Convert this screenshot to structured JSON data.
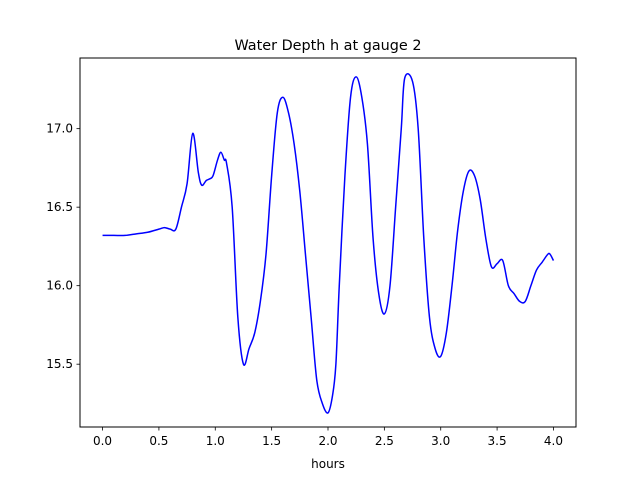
{
  "chart_data": {
    "type": "line",
    "title": "Water Depth h at gauge 2",
    "xlabel": "hours",
    "ylabel": "",
    "xlim": [
      -0.2,
      4.2
    ],
    "ylim": [
      15.1,
      17.45
    ],
    "xticks": [
      0.0,
      0.5,
      1.0,
      1.5,
      2.0,
      2.5,
      3.0,
      3.5,
      4.0
    ],
    "xtick_labels": [
      "0.0",
      "0.5",
      "1.0",
      "1.5",
      "2.0",
      "2.5",
      "3.0",
      "3.5",
      "4.0"
    ],
    "yticks": [
      15.5,
      16.0,
      16.5,
      17.0
    ],
    "ytick_labels": [
      "15.5",
      "16.0",
      "16.5",
      "17.0"
    ],
    "grid": false,
    "series": [
      {
        "color": "#0000ff",
        "x": [
          0.0,
          0.1,
          0.2,
          0.3,
          0.4,
          0.5,
          0.55,
          0.6,
          0.65,
          0.7,
          0.75,
          0.8,
          0.85,
          0.88,
          0.92,
          0.95,
          0.98,
          1.02,
          1.05,
          1.08,
          1.1,
          1.15,
          1.2,
          1.25,
          1.3,
          1.35,
          1.4,
          1.45,
          1.5,
          1.55,
          1.6,
          1.65,
          1.7,
          1.75,
          1.8,
          1.85,
          1.9,
          1.95,
          2.0,
          2.04,
          2.07,
          2.1,
          2.15,
          2.2,
          2.25,
          2.3,
          2.35,
          2.4,
          2.45,
          2.5,
          2.55,
          2.6,
          2.65,
          2.68,
          2.75,
          2.8,
          2.85,
          2.9,
          2.95,
          3.0,
          3.05,
          3.1,
          3.15,
          3.2,
          3.25,
          3.3,
          3.35,
          3.4,
          3.45,
          3.5,
          3.55,
          3.6,
          3.65,
          3.7,
          3.75,
          3.8,
          3.85,
          3.9,
          3.95,
          3.97,
          4.0
        ],
        "y": [
          16.32,
          16.32,
          16.32,
          16.33,
          16.34,
          16.36,
          16.37,
          16.36,
          16.36,
          16.5,
          16.65,
          16.97,
          16.72,
          16.64,
          16.67,
          16.68,
          16.7,
          16.8,
          16.85,
          16.8,
          16.78,
          16.5,
          15.8,
          15.5,
          15.6,
          15.7,
          15.9,
          16.2,
          16.7,
          17.1,
          17.2,
          17.1,
          16.9,
          16.6,
          16.2,
          15.8,
          15.4,
          15.25,
          15.19,
          15.3,
          15.5,
          16.0,
          16.7,
          17.2,
          17.33,
          17.2,
          16.9,
          16.3,
          15.95,
          15.82,
          16.0,
          16.5,
          17.0,
          17.32,
          17.3,
          17.0,
          16.3,
          15.8,
          15.6,
          15.55,
          15.7,
          16.0,
          16.35,
          16.6,
          16.73,
          16.7,
          16.55,
          16.3,
          16.12,
          16.14,
          16.16,
          16.0,
          15.95,
          15.9,
          15.9,
          16.0,
          16.1,
          16.15,
          16.2,
          16.2,
          16.16
        ]
      }
    ]
  }
}
